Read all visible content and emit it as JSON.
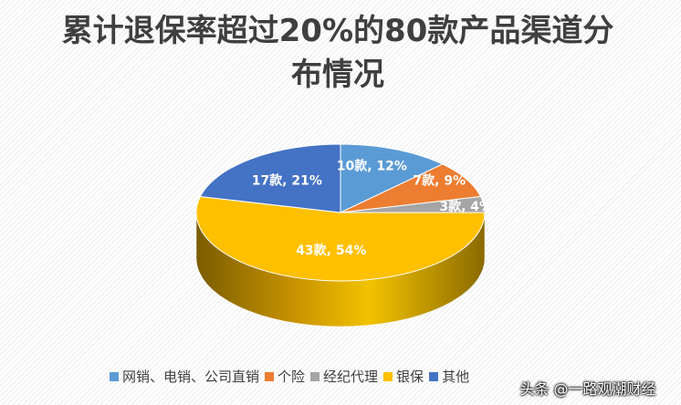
{
  "chart_data": {
    "type": "pie",
    "title": "累计退保率超过20%的80款产品渠道分布情况",
    "series": [
      {
        "name": "网销、电销、公司直销",
        "value": 10,
        "label": "10款, 12%",
        "color": "#5b9bd5"
      },
      {
        "name": "个险",
        "value": 7,
        "label": "7款, 9%",
        "color": "#ed7d31"
      },
      {
        "name": "经纪代理",
        "value": 3,
        "label": "3款, 4%",
        "color": "#a5a5a5"
      },
      {
        "name": "银保",
        "value": 43,
        "label": "43款, 54%",
        "color": "#ffc000"
      },
      {
        "name": "其他",
        "value": 17,
        "label": "17款, 21%",
        "color": "#4472c4"
      }
    ],
    "legend_position": "bottom",
    "style": "3d"
  },
  "watermark": "头条 @一路观潮财经"
}
